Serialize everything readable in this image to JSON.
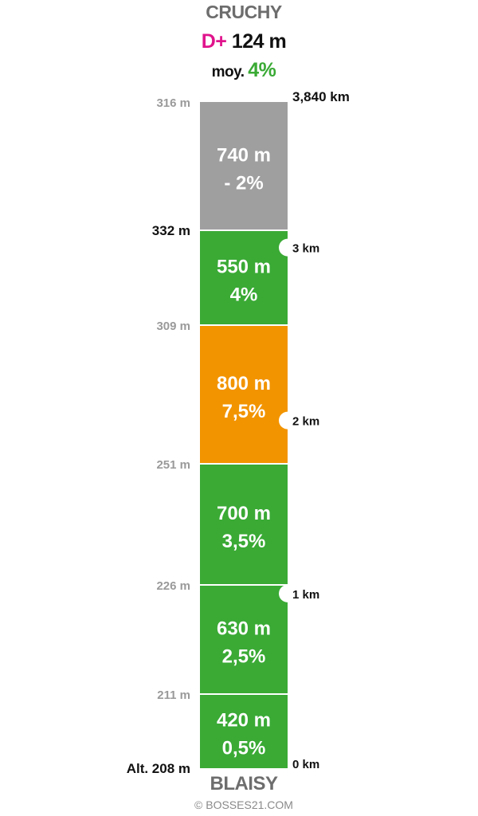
{
  "header": {
    "summit": "CRUCHY",
    "gain_prefix": "D+",
    "gain_value": "124 m",
    "avg_prefix": "moy.",
    "avg_value": "4%"
  },
  "footer": {
    "start": "BLAISY",
    "copyright": "© BOSSES21.COM"
  },
  "colors": {
    "green": "#3aaa35",
    "orange": "#f29400",
    "gray": "#a09fa0",
    "magenta": "#e0138c"
  },
  "segments": [
    {
      "distance": "420 m",
      "grade": "0,5%",
      "color": "green",
      "km_start": 0,
      "km_end": 0.42
    },
    {
      "distance": "630 m",
      "grade": "2,5%",
      "color": "green",
      "km_start": 0.42,
      "km_end": 1.05
    },
    {
      "distance": "700 m",
      "grade": "3,5%",
      "color": "green",
      "km_start": 1.05,
      "km_end": 1.75
    },
    {
      "distance": "800 m",
      "grade": "7,5%",
      "color": "orange",
      "km_start": 1.75,
      "km_end": 2.55
    },
    {
      "distance": "550 m",
      "grade": "4%",
      "color": "green",
      "km_start": 2.55,
      "km_end": 3.1
    },
    {
      "distance": "740 m",
      "grade": "- 2%",
      "color": "gray",
      "km_start": 3.1,
      "km_end": 3.84
    }
  ],
  "altitudes": [
    {
      "label": "Alt. 208 m",
      "km": 0,
      "emphasis": true
    },
    {
      "label": "211 m",
      "km": 0.42,
      "emphasis": false
    },
    {
      "label": "226 m",
      "km": 1.05,
      "emphasis": false
    },
    {
      "label": "251 m",
      "km": 1.75,
      "emphasis": false
    },
    {
      "label": "309 m",
      "km": 2.55,
      "emphasis": false
    },
    {
      "label": "332 m",
      "km": 3.1,
      "emphasis": true
    },
    {
      "label": "316 m",
      "km": 3.84,
      "emphasis": false
    }
  ],
  "km_markers": [
    {
      "label": "0 km",
      "km": 0,
      "notch": false,
      "emphasis": false
    },
    {
      "label": "1 km",
      "km": 1,
      "notch": true,
      "emphasis": false
    },
    {
      "label": "2 km",
      "km": 2,
      "notch": true,
      "emphasis": false
    },
    {
      "label": "3 km",
      "km": 3,
      "notch": true,
      "emphasis": false
    },
    {
      "label": "3,840 km",
      "km": 3.84,
      "notch": false,
      "emphasis": true
    }
  ]
}
